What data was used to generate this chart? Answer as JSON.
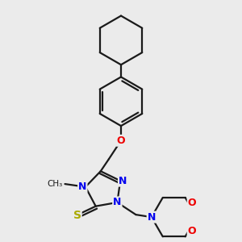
{
  "bg_color": "#ebebeb",
  "bond_color": "#1a1a1a",
  "bond_width": 1.6,
  "dbo": 0.05,
  "atom_colors": {
    "N": "#0000ee",
    "O": "#ee0000",
    "S": "#aaaa00"
  },
  "fs": 8.5,
  "figsize": [
    3.0,
    3.0
  ],
  "dpi": 100
}
